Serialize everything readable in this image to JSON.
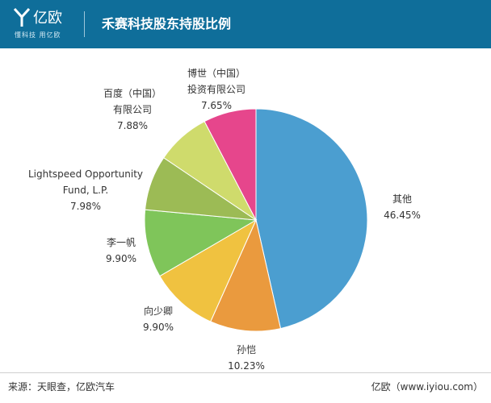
{
  "header": {
    "logo_name": "亿欧",
    "logo_tagline": "懂科技 用亿欧",
    "title": "禾赛科技股东持股比例"
  },
  "colors": {
    "header_bg": "#0f6e9a",
    "logo": "#ffffff"
  },
  "chart_data": {
    "type": "pie",
    "title": "禾赛科技股东持股比例",
    "start": "12 o'clock",
    "direction": "clockwise",
    "slices": [
      {
        "label_lines": [
          "其他"
        ],
        "value_text": "46.45%",
        "value": 46.45,
        "color": "#4b9ed0"
      },
      {
        "label_lines": [
          "孙恺"
        ],
        "value_text": "10.23%",
        "value": 10.23,
        "color": "#ea9a3e"
      },
      {
        "label_lines": [
          "向少卿"
        ],
        "value_text": "9.90%",
        "value": 9.9,
        "color": "#f0c240"
      },
      {
        "label_lines": [
          "李一帆"
        ],
        "value_text": "9.90%",
        "value": 9.9,
        "color": "#7fc55a"
      },
      {
        "label_lines": [
          "Lightspeed Opportunity",
          "Fund, L.P."
        ],
        "value_text": "7.98%",
        "value": 7.98,
        "color": "#9cbb55"
      },
      {
        "label_lines": [
          "百度（中国）",
          "有限公司"
        ],
        "value_text": "7.88%",
        "value": 7.88,
        "color": "#cfdb6c"
      },
      {
        "label_lines": [
          "博世（中国）",
          "投资有限公司"
        ],
        "value_text": "7.65%",
        "value": 7.65,
        "color": "#e6468c"
      }
    ]
  },
  "footer": {
    "source": "来源：天眼查，亿欧汽车",
    "site": "亿欧（www.iyiou.com）"
  }
}
